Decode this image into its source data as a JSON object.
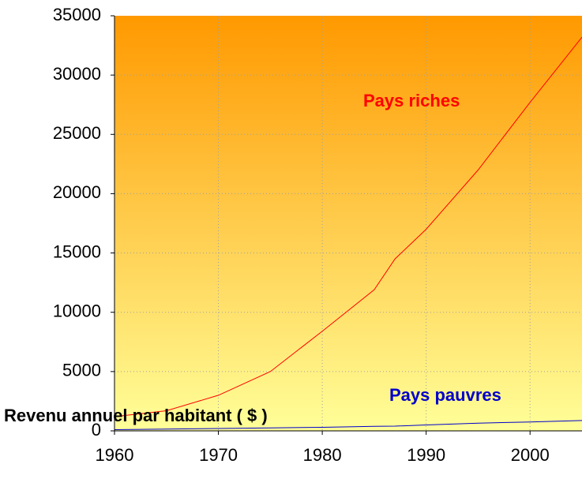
{
  "chart_data": {
    "type": "line",
    "x": [
      1960,
      1965,
      1970,
      1975,
      1980,
      1985,
      1987,
      1990,
      1995,
      2000,
      2005
    ],
    "series": [
      {
        "name": "Pays riches",
        "color": "#ff0000",
        "values": [
          1200,
          1700,
          3000,
          5000,
          8400,
          11900,
          14500,
          17000,
          22000,
          27700,
          33200
        ]
      },
      {
        "name": "Pays pauvres",
        "color": "#0000cc",
        "values": [
          100,
          150,
          200,
          250,
          300,
          380,
          400,
          500,
          650,
          750,
          870
        ]
      }
    ],
    "xlim": [
      1960,
      2005
    ],
    "xticks": [
      1960,
      1970,
      1980,
      1990,
      2000
    ],
    "ylim": [
      0,
      35000
    ],
    "yticks": [
      0,
      5000,
      10000,
      15000,
      20000,
      25000,
      30000,
      35000
    ],
    "ylabel": "Revenu annuel par habitant ( $ )",
    "grid": true
  }
}
